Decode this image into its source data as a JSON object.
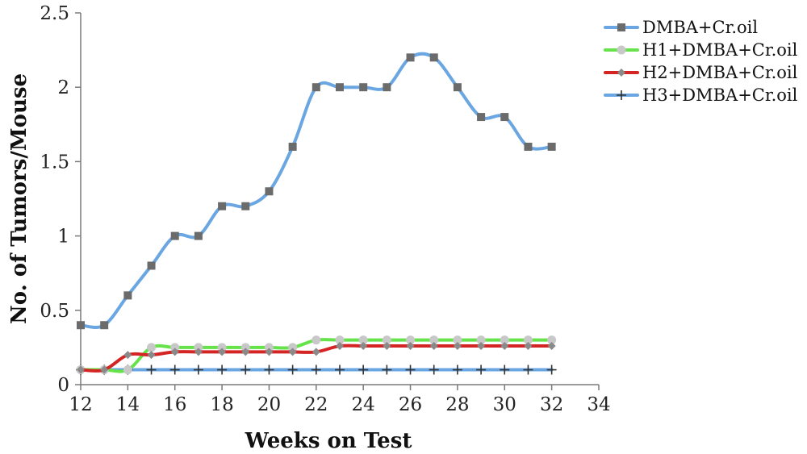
{
  "chart_data": {
    "type": "line",
    "title": "",
    "xlabel": "Weeks on Test",
    "ylabel": "No. of Tumors/Mouse",
    "xlim": [
      12,
      34
    ],
    "ylim": [
      0,
      2.5
    ],
    "xticks": [
      "12",
      "14",
      "16",
      "18",
      "20",
      "22",
      "24",
      "26",
      "28",
      "30",
      "32",
      "34"
    ],
    "yticks": [
      "0",
      "0.5",
      "1",
      "1.5",
      "2",
      "2.5"
    ],
    "grid": false,
    "legend_position": "top-right",
    "series": [
      {
        "name": "DMBA+Cr.oil",
        "color": "#6aa6e2",
        "marker": "square",
        "marker_color": "#6b6b6b",
        "x": [
          12,
          13,
          14,
          15,
          16,
          17,
          18,
          19,
          20,
          21,
          22,
          23,
          24,
          25,
          26,
          27,
          28,
          29,
          30,
          31,
          32
        ],
        "y": [
          0.4,
          0.4,
          0.6,
          0.8,
          1.0,
          1.0,
          1.2,
          1.2,
          1.3,
          1.6,
          2.0,
          2.0,
          2.0,
          2.0,
          2.2,
          2.2,
          2.0,
          1.8,
          1.8,
          1.6,
          1.6
        ]
      },
      {
        "name": "H1+DMBA+Cr.oil",
        "color": "#66e24a",
        "marker": "circle",
        "marker_color": "#c8c8c8",
        "x": [
          12,
          13,
          14,
          15,
          16,
          17,
          18,
          19,
          20,
          21,
          22,
          23,
          24,
          25,
          26,
          27,
          28,
          29,
          30,
          31,
          32
        ],
        "y": [
          0.1,
          0.1,
          0.1,
          0.25,
          0.25,
          0.25,
          0.25,
          0.25,
          0.25,
          0.25,
          0.3,
          0.3,
          0.3,
          0.3,
          0.3,
          0.3,
          0.3,
          0.3,
          0.3,
          0.3,
          0.3
        ]
      },
      {
        "name": "H2+DMBA+Cr.oil",
        "color": "#d42424",
        "marker": "diamond",
        "marker_color": "#8a8a8a",
        "x": [
          12,
          13,
          14,
          15,
          16,
          17,
          18,
          19,
          20,
          21,
          22,
          23,
          24,
          25,
          26,
          27,
          28,
          29,
          30,
          31,
          32
        ],
        "y": [
          0.1,
          0.1,
          0.2,
          0.2,
          0.22,
          0.22,
          0.22,
          0.22,
          0.22,
          0.22,
          0.22,
          0.26,
          0.26,
          0.26,
          0.26,
          0.26,
          0.26,
          0.26,
          0.26,
          0.26,
          0.26
        ]
      },
      {
        "name": "H3+DMBA+Cr.oil",
        "color": "#6aa6e2",
        "marker": "plus",
        "marker_color": "#333333",
        "x": [
          12,
          13,
          14,
          15,
          16,
          17,
          18,
          19,
          20,
          21,
          22,
          23,
          24,
          25,
          26,
          27,
          28,
          29,
          30,
          31,
          32
        ],
        "y": [
          0.1,
          0.1,
          0.1,
          0.1,
          0.1,
          0.1,
          0.1,
          0.1,
          0.1,
          0.1,
          0.1,
          0.1,
          0.1,
          0.1,
          0.1,
          0.1,
          0.1,
          0.1,
          0.1,
          0.1,
          0.1
        ]
      }
    ]
  }
}
